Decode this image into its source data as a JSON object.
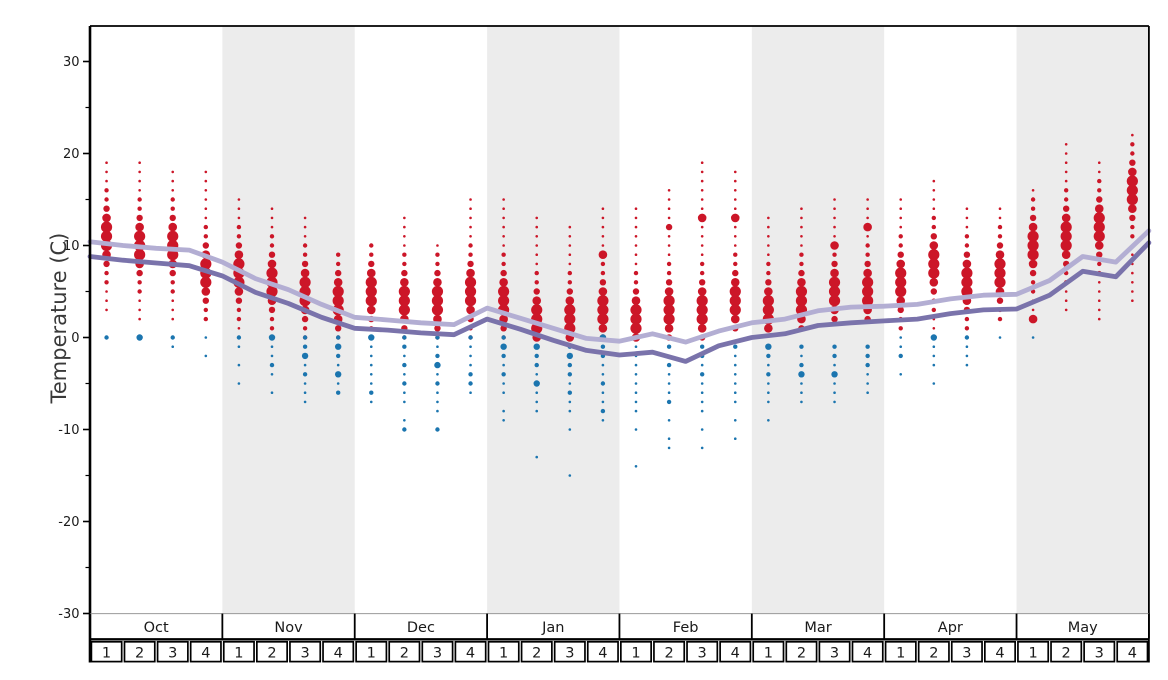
{
  "chart_data": {
    "type": "scatter",
    "title": "",
    "ylabel": "Temperature (C)",
    "y_axis": {
      "major_ticks": [
        30,
        20,
        10,
        0,
        -10,
        -20,
        -30
      ],
      "minor_ticks": [
        25,
        15,
        5,
        -5,
        -15,
        -25
      ],
      "range": [
        -30,
        33.5
      ]
    },
    "months": [
      "Oct",
      "Nov",
      "Dec",
      "Jan",
      "Feb",
      "Mar",
      "Apr",
      "May"
    ],
    "week_labels": [
      "1",
      "2",
      "3",
      "4"
    ],
    "shaded_month_indices": [
      1,
      3,
      5,
      7
    ],
    "legend_position": "none",
    "grid": false,
    "dot_size_classes": {
      "1": 1.3,
      "2": 2.2,
      "3": 3.2,
      "4": 4.3,
      "5": 5.6
    },
    "colors": {
      "above_freezing_dot": "#cc1628",
      "below_freezing_dot": "#1b75af",
      "avg_high_line": "#b3aed3",
      "avg_low_line": "#7a73ab",
      "month_band": "#ececec",
      "frame": "#000000",
      "table_topline": "#999999",
      "text": "#1a1a1a"
    },
    "weeks": [
      {
        "m": "Oct",
        "w": 1,
        "red": {
          "max": 19,
          "mode": 11,
          "min": 3
        },
        "blue": [
          [
            0,
            2
          ]
        ]
      },
      {
        "m": "Oct",
        "w": 2,
        "red": {
          "max": 19,
          "mode": 10,
          "min": 2
        },
        "blue": [
          [
            0,
            3
          ]
        ]
      },
      {
        "m": "Oct",
        "w": 3,
        "red": {
          "max": 18,
          "mode": 10,
          "min": 2
        },
        "blue": [
          [
            0,
            2
          ],
          [
            -1,
            1
          ]
        ]
      },
      {
        "m": "Oct",
        "w": 4,
        "red": {
          "max": 18,
          "mode": 7,
          "min": 2
        },
        "blue": [
          [
            0,
            1
          ],
          [
            -2,
            1
          ]
        ]
      },
      {
        "m": "Nov",
        "w": 1,
        "red": {
          "max": 15,
          "mode": 7,
          "min": 1
        },
        "blue": [
          [
            0,
            2
          ],
          [
            -1,
            1
          ],
          [
            -3,
            1
          ],
          [
            -5,
            1
          ]
        ]
      },
      {
        "m": "Nov",
        "w": 2,
        "red": {
          "max": 14,
          "mode": 6,
          "min": 1
        },
        "blue": [
          [
            0,
            3
          ],
          [
            -1,
            1
          ],
          [
            -2,
            1
          ],
          [
            -3,
            2
          ],
          [
            -4,
            1
          ],
          [
            -6,
            1
          ]
        ]
      },
      {
        "m": "Nov",
        "w": 3,
        "red": {
          "max": 13,
          "mode": 5,
          "min": 0
        },
        "blue": [
          [
            0,
            2
          ],
          [
            -1,
            2
          ],
          [
            -2,
            3
          ],
          [
            -3,
            1
          ],
          [
            -4,
            2
          ],
          [
            -5,
            1
          ],
          [
            -6,
            1
          ],
          [
            -7,
            1
          ]
        ]
      },
      {
        "m": "Nov",
        "w": 4,
        "red": {
          "max": 9,
          "mode": 4,
          "min": 0
        },
        "blue": [
          [
            0,
            2
          ],
          [
            -1,
            3
          ],
          [
            -2,
            2
          ],
          [
            -3,
            1
          ],
          [
            -4,
            3
          ],
          [
            -5,
            1
          ],
          [
            -6,
            2
          ]
        ]
      },
      {
        "m": "Dec",
        "w": 1,
        "red": {
          "max": 10,
          "mode": 5,
          "min": 0
        },
        "blue": [
          [
            0,
            3
          ],
          [
            -1,
            1
          ],
          [
            -2,
            1
          ],
          [
            -3,
            1
          ],
          [
            -4,
            1
          ],
          [
            -5,
            1
          ],
          [
            -6,
            2
          ],
          [
            -7,
            1
          ]
        ]
      },
      {
        "m": "Dec",
        "w": 2,
        "red": {
          "max": 13,
          "mode": 4,
          "min": 0
        },
        "blue": [
          [
            0,
            2
          ],
          [
            -1,
            2
          ],
          [
            -2,
            1
          ],
          [
            -3,
            2
          ],
          [
            -4,
            1
          ],
          [
            -5,
            2
          ],
          [
            -6,
            1
          ],
          [
            -7,
            1
          ],
          [
            -9,
            1
          ],
          [
            -10,
            2
          ]
        ]
      },
      {
        "m": "Dec",
        "w": 3,
        "red": {
          "max": 10,
          "mode": 4,
          "min": 0
        },
        "blue": [
          [
            0,
            2
          ],
          [
            -1,
            1
          ],
          [
            -2,
            2
          ],
          [
            -3,
            3
          ],
          [
            -4,
            1
          ],
          [
            -5,
            2
          ],
          [
            -6,
            1
          ],
          [
            -7,
            1
          ],
          [
            -8,
            1
          ],
          [
            -10,
            2
          ]
        ]
      },
      {
        "m": "Dec",
        "w": 4,
        "red": {
          "max": 15,
          "mode": 5,
          "min": 0
        },
        "blue": [
          [
            0,
            2
          ],
          [
            -1,
            1
          ],
          [
            -2,
            1
          ],
          [
            -3,
            1
          ],
          [
            -4,
            2
          ],
          [
            -5,
            2
          ],
          [
            -6,
            1
          ]
        ]
      },
      {
        "m": "Jan",
        "w": 1,
        "red": {
          "max": 15,
          "mode": 4,
          "min": 0
        },
        "blue": [
          [
            0,
            2
          ],
          [
            -1,
            3
          ],
          [
            -2,
            2
          ],
          [
            -3,
            1
          ],
          [
            -4,
            2
          ],
          [
            -5,
            1
          ],
          [
            -6,
            1
          ],
          [
            -8,
            1
          ],
          [
            -9,
            1
          ]
        ]
      },
      {
        "m": "Jan",
        "w": 2,
        "red": {
          "max": 13,
          "mode": 2,
          "min": 0
        },
        "blue": [
          [
            -1,
            3
          ],
          [
            -2,
            2
          ],
          [
            -3,
            2
          ],
          [
            -4,
            1
          ],
          [
            -5,
            3
          ],
          [
            -6,
            1
          ],
          [
            -7,
            1
          ],
          [
            -8,
            1
          ],
          [
            -13,
            1
          ]
        ]
      },
      {
        "m": "Jan",
        "w": 3,
        "red": {
          "max": 12,
          "mode": 2,
          "min": 0
        },
        "blue": [
          [
            -1,
            2
          ],
          [
            -2,
            3
          ],
          [
            -3,
            2
          ],
          [
            -4,
            2
          ],
          [
            -5,
            1
          ],
          [
            -6,
            2
          ],
          [
            -7,
            1
          ],
          [
            -8,
            1
          ],
          [
            -10,
            1
          ],
          [
            -15,
            1
          ]
        ]
      },
      {
        "m": "Jan",
        "w": 4,
        "red": {
          "max": 14,
          "mode": 3,
          "min": 0,
          "extra": [
            [
              9,
              4
            ]
          ]
        },
        "blue": [
          [
            0,
            3
          ],
          [
            -1,
            2
          ],
          [
            -2,
            2
          ],
          [
            -3,
            1
          ],
          [
            -4,
            1
          ],
          [
            -5,
            2
          ],
          [
            -6,
            1
          ],
          [
            -7,
            1
          ],
          [
            -8,
            2
          ],
          [
            -9,
            1
          ]
        ]
      },
      {
        "m": "Feb",
        "w": 1,
        "red": {
          "max": 14,
          "mode": 2,
          "min": 0
        },
        "blue": [
          [
            -1,
            1
          ],
          [
            -2,
            1
          ],
          [
            -3,
            1
          ],
          [
            -4,
            1
          ],
          [
            -5,
            1
          ],
          [
            -6,
            1
          ],
          [
            -7,
            1
          ],
          [
            -8,
            1
          ],
          [
            -10,
            1
          ],
          [
            -14,
            1
          ]
        ]
      },
      {
        "m": "Feb",
        "w": 2,
        "red": {
          "max": 16,
          "mode": 3,
          "min": 0,
          "extra": [
            [
              12,
              3
            ]
          ]
        },
        "blue": [
          [
            -1,
            2
          ],
          [
            -2,
            1
          ],
          [
            -3,
            2
          ],
          [
            -4,
            1
          ],
          [
            -5,
            1
          ],
          [
            -6,
            1
          ],
          [
            -7,
            2
          ],
          [
            -9,
            1
          ],
          [
            -11,
            1
          ],
          [
            -12,
            1
          ]
        ]
      },
      {
        "m": "Feb",
        "w": 3,
        "red": {
          "max": 19,
          "mode": 3,
          "min": 0,
          "extra": [
            [
              13,
              4
            ]
          ]
        },
        "blue": [
          [
            -1,
            2
          ],
          [
            -2,
            2
          ],
          [
            -3,
            1
          ],
          [
            -4,
            2
          ],
          [
            -5,
            1
          ],
          [
            -6,
            1
          ],
          [
            -7,
            1
          ],
          [
            -8,
            1
          ],
          [
            -10,
            1
          ],
          [
            -12,
            1
          ]
        ]
      },
      {
        "m": "Feb",
        "w": 4,
        "red": {
          "max": 18,
          "mode": 4,
          "min": 1,
          "extra": [
            [
              13,
              4
            ]
          ]
        },
        "blue": [
          [
            -1,
            2
          ],
          [
            -2,
            1
          ],
          [
            -3,
            1
          ],
          [
            -4,
            1
          ],
          [
            -5,
            1
          ],
          [
            -6,
            1
          ],
          [
            -7,
            1
          ],
          [
            -9,
            1
          ],
          [
            -11,
            1
          ]
        ]
      },
      {
        "m": "Mar",
        "w": 1,
        "red": {
          "max": 13,
          "mode": 3,
          "min": 1
        },
        "blue": [
          [
            -1,
            3
          ],
          [
            -2,
            2
          ],
          [
            -3,
            1
          ],
          [
            -4,
            2
          ],
          [
            -5,
            1
          ],
          [
            -6,
            1
          ],
          [
            -7,
            1
          ],
          [
            -9,
            1
          ]
        ]
      },
      {
        "m": "Mar",
        "w": 2,
        "red": {
          "max": 14,
          "mode": 4,
          "min": 1
        },
        "blue": [
          [
            -1,
            2
          ],
          [
            -2,
            1
          ],
          [
            -3,
            2
          ],
          [
            -4,
            3
          ],
          [
            -5,
            1
          ],
          [
            -6,
            1
          ],
          [
            -7,
            1
          ]
        ]
      },
      {
        "m": "Mar",
        "w": 3,
        "red": {
          "max": 15,
          "mode": 5,
          "min": 2,
          "extra": [
            [
              10,
              4
            ]
          ]
        },
        "blue": [
          [
            -1,
            2
          ],
          [
            -2,
            2
          ],
          [
            -3,
            1
          ],
          [
            -4,
            3
          ],
          [
            -5,
            1
          ],
          [
            -6,
            1
          ],
          [
            -7,
            1
          ]
        ]
      },
      {
        "m": "Mar",
        "w": 4,
        "red": {
          "max": 15,
          "mode": 5,
          "min": 2,
          "extra": [
            [
              12,
              4
            ]
          ]
        },
        "blue": [
          [
            -1,
            2
          ],
          [
            -2,
            2
          ],
          [
            -3,
            2
          ],
          [
            -4,
            1
          ],
          [
            -5,
            1
          ],
          [
            -6,
            1
          ]
        ]
      },
      {
        "m": "Apr",
        "w": 1,
        "red": {
          "max": 15,
          "mode": 6,
          "min": 1
        },
        "blue": [
          [
            0,
            1
          ],
          [
            -1,
            1
          ],
          [
            -2,
            2
          ],
          [
            -4,
            1
          ]
        ]
      },
      {
        "m": "Apr",
        "w": 2,
        "red": {
          "max": 17,
          "mode": 8,
          "min": 1
        },
        "blue": [
          [
            0,
            3
          ],
          [
            -1,
            1
          ],
          [
            -2,
            1
          ],
          [
            -3,
            1
          ],
          [
            -5,
            1
          ]
        ]
      },
      {
        "m": "Apr",
        "w": 3,
        "red": {
          "max": 14,
          "mode": 6,
          "min": 1
        },
        "blue": [
          [
            0,
            2
          ],
          [
            -1,
            1
          ],
          [
            -2,
            1
          ],
          [
            -3,
            1
          ]
        ]
      },
      {
        "m": "Apr",
        "w": 4,
        "red": {
          "max": 14,
          "mode": 7,
          "min": 2
        },
        "blue": [
          [
            0,
            1
          ]
        ]
      },
      {
        "m": "May",
        "w": 1,
        "red": {
          "max": 16,
          "mode": 10,
          "min": 2,
          "extra": [
            [
              2,
              4
            ]
          ]
        },
        "blue": [
          [
            0,
            1
          ]
        ]
      },
      {
        "m": "May",
        "w": 2,
        "red": {
          "max": 21,
          "mode": 11,
          "min": 3
        },
        "blue": []
      },
      {
        "m": "May",
        "w": 3,
        "red": {
          "max": 19,
          "mode": 12,
          "min": 2
        },
        "blue": []
      },
      {
        "m": "May",
        "w": 4,
        "red": {
          "max": 22,
          "mode": 16,
          "min": 4
        },
        "blue": []
      }
    ],
    "avg_high_line_values": [
      10.4,
      10.0,
      9.7,
      9.5,
      8.2,
      6.4,
      5.2,
      3.6,
      2.2,
      1.9,
      1.6,
      1.4,
      3.2,
      2.1,
      1.0,
      -0.1,
      -0.4,
      0.4,
      -0.5,
      0.7,
      1.6,
      2.0,
      2.9,
      3.3,
      3.4,
      3.6,
      4.2,
      4.6,
      4.7,
      6.2,
      8.8,
      8.2,
      11.6
    ],
    "avg_low_line_values": [
      8.8,
      8.4,
      8.1,
      7.8,
      6.7,
      4.9,
      3.7,
      2.2,
      1.0,
      0.8,
      0.5,
      0.3,
      2.0,
      0.9,
      -0.3,
      -1.4,
      -1.9,
      -1.6,
      -2.6,
      -0.9,
      0.0,
      0.4,
      1.3,
      1.6,
      1.8,
      2.0,
      2.6,
      3.0,
      3.1,
      4.6,
      7.2,
      6.6,
      10.3
    ],
    "line_x_note": "vertices at week starts, final vertex at right edge"
  }
}
